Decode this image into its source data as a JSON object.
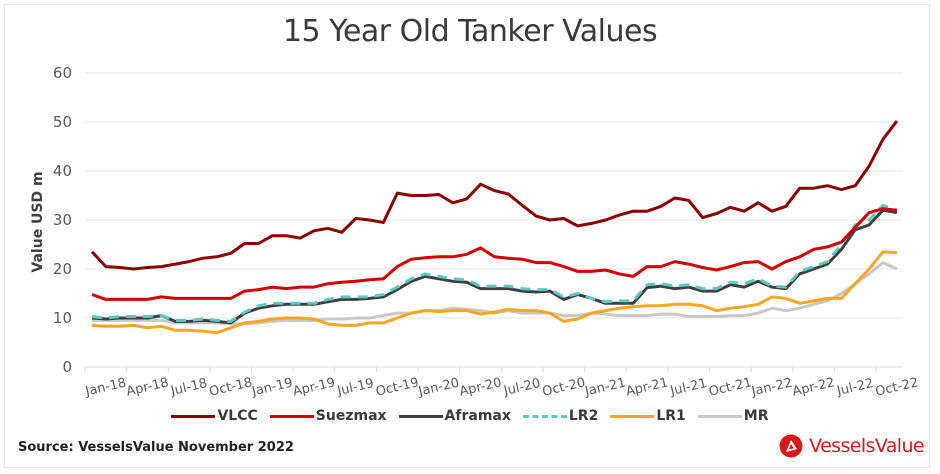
{
  "chart_data": {
    "type": "line",
    "title": "15 Year Old Tanker Values",
    "xlabel": "",
    "ylabel": "Value USD m",
    "ylim": [
      0,
      60
    ],
    "yticks": [
      0,
      10,
      20,
      30,
      40,
      50,
      60
    ],
    "grid": true,
    "legend_position": "bottom",
    "x_tick_labels": [
      "Jan-18",
      "Apr-18",
      "Jul-18",
      "Oct-18",
      "Jan-19",
      "Apr-19",
      "Jul-19",
      "Oct-19",
      "Jan-20",
      "Apr-20",
      "Jul-20",
      "Oct-20",
      "Jan-21",
      "Apr-21",
      "Jul-21",
      "Oct-21",
      "Jan-22",
      "Apr-22",
      "Jul-22",
      "Oct-22"
    ],
    "x": [
      "Jan-18",
      "Feb-18",
      "Mar-18",
      "Apr-18",
      "May-18",
      "Jun-18",
      "Jul-18",
      "Aug-18",
      "Sep-18",
      "Oct-18",
      "Nov-18",
      "Dec-18",
      "Jan-19",
      "Feb-19",
      "Mar-19",
      "Apr-19",
      "May-19",
      "Jun-19",
      "Jul-19",
      "Aug-19",
      "Sep-19",
      "Oct-19",
      "Nov-19",
      "Dec-19",
      "Jan-20",
      "Feb-20",
      "Mar-20",
      "Apr-20",
      "May-20",
      "Jun-20",
      "Jul-20",
      "Aug-20",
      "Sep-20",
      "Oct-20",
      "Nov-20",
      "Dec-20",
      "Jan-21",
      "Feb-21",
      "Mar-21",
      "Apr-21",
      "May-21",
      "Jun-21",
      "Jul-21",
      "Aug-21",
      "Sep-21",
      "Oct-21",
      "Nov-21",
      "Dec-21",
      "Jan-22",
      "Feb-22",
      "Mar-22",
      "Apr-22",
      "May-22",
      "Jun-22",
      "Jul-22",
      "Aug-22",
      "Sep-22",
      "Oct-22",
      "Nov-22"
    ],
    "series": [
      {
        "name": "VLCC",
        "color": "#8b0000",
        "dash": false,
        "values": [
          23.5,
          20.5,
          20.3,
          20.0,
          20.3,
          20.5,
          21.0,
          21.5,
          22.2,
          22.5,
          23.2,
          25.2,
          25.2,
          26.8,
          26.8,
          26.3,
          27.8,
          28.3,
          27.5,
          30.3,
          30.0,
          29.5,
          35.5,
          35.0,
          35.0,
          35.2,
          33.5,
          34.3,
          37.3,
          36.0,
          35.3,
          33.0,
          30.8,
          30.0,
          30.3,
          28.8,
          29.3,
          30.0,
          31.0,
          31.8,
          31.8,
          32.8,
          34.5,
          34.0,
          30.5,
          31.3,
          32.6,
          31.8,
          33.5,
          31.8,
          32.8,
          36.5,
          36.5,
          37.0,
          36.2,
          37.0,
          41.0,
          46.5,
          50.2
        ]
      },
      {
        "name": "Suezmax",
        "color": "#d40000",
        "dash": false,
        "values": [
          14.8,
          13.8,
          13.8,
          13.8,
          13.8,
          14.3,
          14.0,
          14.0,
          14.0,
          14.0,
          14.0,
          15.5,
          15.8,
          16.3,
          16.0,
          16.3,
          16.3,
          17.0,
          17.3,
          17.5,
          17.8,
          18.0,
          20.5,
          22.0,
          22.3,
          22.5,
          22.5,
          23.0,
          24.3,
          22.5,
          22.2,
          22.0,
          21.3,
          21.3,
          20.5,
          19.5,
          19.5,
          19.8,
          19.0,
          18.5,
          20.5,
          20.5,
          21.5,
          21.0,
          20.3,
          19.8,
          20.5,
          21.3,
          21.5,
          20.0,
          21.5,
          22.5,
          24.0,
          24.5,
          25.5,
          28.5,
          31.5,
          32.3,
          32.0
        ]
      },
      {
        "name": "Aframax",
        "color": "#3f3f3f",
        "dash": false,
        "values": [
          10.0,
          9.8,
          10.0,
          10.0,
          10.0,
          10.5,
          9.3,
          9.3,
          9.5,
          9.3,
          9.0,
          11.0,
          12.0,
          12.5,
          12.8,
          12.8,
          12.8,
          13.3,
          13.8,
          13.8,
          14.0,
          14.3,
          15.8,
          17.5,
          18.5,
          18.0,
          17.5,
          17.3,
          16.0,
          16.0,
          16.0,
          15.5,
          15.3,
          15.5,
          13.8,
          14.8,
          14.0,
          13.0,
          13.0,
          13.0,
          16.2,
          16.5,
          16.0,
          16.3,
          15.5,
          15.5,
          16.8,
          16.3,
          17.5,
          16.3,
          16.0,
          19.0,
          20.0,
          21.0,
          24.0,
          28.0,
          29.0,
          32.0,
          31.5
        ]
      },
      {
        "name": "LR2",
        "color": "#5bc8c8",
        "dash": true,
        "values": [
          10.3,
          10.0,
          10.3,
          10.3,
          10.3,
          10.5,
          9.5,
          9.5,
          9.8,
          9.5,
          9.3,
          11.2,
          12.5,
          13.0,
          13.0,
          13.0,
          13.0,
          13.8,
          14.3,
          14.3,
          14.3,
          14.8,
          16.3,
          18.0,
          19.0,
          18.5,
          18.0,
          17.8,
          16.5,
          16.5,
          16.5,
          16.0,
          15.8,
          15.8,
          14.3,
          15.0,
          14.0,
          13.3,
          13.5,
          13.5,
          16.8,
          17.0,
          16.5,
          16.8,
          16.0,
          16.0,
          17.3,
          17.0,
          18.0,
          16.5,
          16.3,
          19.5,
          20.5,
          21.5,
          25.0,
          29.0,
          30.0,
          33.0,
          32.0
        ]
      },
      {
        "name": "LR1",
        "color": "#f5a623",
        "dash": false,
        "values": [
          8.5,
          8.3,
          8.3,
          8.5,
          8.0,
          8.3,
          7.5,
          7.5,
          7.3,
          7.0,
          8.0,
          9.0,
          9.3,
          9.8,
          10.0,
          10.0,
          9.8,
          8.8,
          8.5,
          8.5,
          9.0,
          9.0,
          10.0,
          11.0,
          11.5,
          11.3,
          11.5,
          11.5,
          10.8,
          11.2,
          11.8,
          11.5,
          11.5,
          11.0,
          9.3,
          9.8,
          11.0,
          11.5,
          12.0,
          12.3,
          12.5,
          12.5,
          12.8,
          12.8,
          12.5,
          11.5,
          12.0,
          12.3,
          12.8,
          14.3,
          14.0,
          13.0,
          13.5,
          14.0,
          14.0,
          17.0,
          20.0,
          23.5,
          23.3
        ]
      },
      {
        "name": "MR",
        "color": "#c8c8c8",
        "dash": false,
        "values": [
          9.5,
          9.5,
          9.5,
          9.5,
          9.5,
          9.5,
          9.0,
          9.0,
          9.0,
          9.0,
          8.8,
          8.8,
          9.0,
          9.3,
          9.5,
          9.5,
          9.5,
          9.8,
          9.8,
          10.0,
          10.0,
          10.5,
          11.0,
          11.0,
          11.5,
          11.5,
          12.0,
          11.8,
          11.5,
          11.0,
          11.5,
          11.0,
          11.0,
          11.0,
          10.5,
          10.5,
          11.0,
          10.8,
          10.5,
          10.5,
          10.5,
          10.8,
          10.8,
          10.3,
          10.3,
          10.3,
          10.5,
          10.5,
          11.0,
          12.0,
          11.5,
          12.0,
          12.8,
          13.5,
          15.0,
          17.0,
          19.0,
          21.3,
          20.0
        ]
      }
    ]
  },
  "legend": [
    {
      "label": "VLCC",
      "color": "#8b0000",
      "dash": false
    },
    {
      "label": "Suezmax",
      "color": "#d40000",
      "dash": false
    },
    {
      "label": "Aframax",
      "color": "#3f3f3f",
      "dash": false
    },
    {
      "label": "LR2",
      "color": "#5bc8c8",
      "dash": true
    },
    {
      "label": "LR1",
      "color": "#f5a623",
      "dash": false
    },
    {
      "label": "MR",
      "color": "#c8c8c8",
      "dash": false
    }
  ],
  "footer": {
    "source": "Source: VesselsValue November 2022",
    "brand": "VesselsValue",
    "brand_color": "#d7191c"
  }
}
